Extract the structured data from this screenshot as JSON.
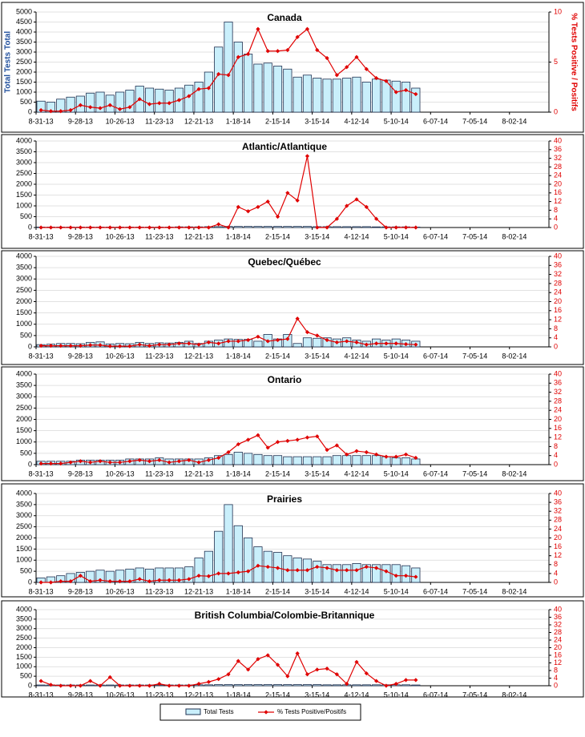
{
  "chart_data": [
    {
      "type": "bar_line",
      "title": "Canada",
      "y_label": "Total Tests Total",
      "y2_label": "% Tests Positive / Positifs",
      "categories": [
        "8-31-13",
        null,
        null,
        null,
        "9-28-13",
        null,
        null,
        null,
        "10-26-13",
        null,
        null,
        null,
        "11-23-13",
        null,
        null,
        null,
        "12-21-13",
        null,
        null,
        null,
        "1-18-14",
        null,
        null,
        null,
        "2-15-14",
        null,
        null,
        null,
        "3-15-14",
        null,
        null,
        null,
        "4-12-14",
        null,
        null,
        null,
        "5-10-14",
        null,
        null,
        null,
        "6-07-14",
        null,
        null,
        null,
        "7-05-14",
        null,
        null,
        null,
        "8-02-14",
        null,
        null,
        null
      ],
      "series": [
        {
          "name": "Total Tests",
          "color": "#c9effb",
          "values": [
            550,
            500,
            650,
            750,
            800,
            950,
            1000,
            850,
            1000,
            1100,
            1300,
            1200,
            1150,
            1100,
            1200,
            1350,
            1500,
            2000,
            3250,
            4500,
            3500,
            2900,
            2400,
            2450,
            2300,
            2150,
            1750,
            1850,
            1700,
            1650,
            1650,
            1700,
            1750,
            1500,
            1650,
            1600,
            1550,
            1500,
            1200,
            null,
            null,
            null,
            null,
            null,
            null,
            null,
            null,
            null,
            null,
            null,
            null,
            null
          ]
        },
        {
          "name": "% Tests Positive/Positifs",
          "color": "#e00000",
          "axis": "y2",
          "values": [
            0.2,
            0.1,
            0.1,
            0.2,
            0.7,
            0.5,
            0.4,
            0.7,
            0.3,
            0.5,
            1.3,
            0.8,
            0.9,
            0.9,
            1.2,
            1.6,
            2.3,
            2.4,
            3.8,
            3.7,
            5.5,
            5.8,
            8.3,
            6.1,
            6.1,
            6.2,
            7.5,
            8.3,
            6.2,
            5.4,
            3.7,
            4.5,
            5.5,
            4.3,
            3.4,
            3.1,
            2.0,
            2.2,
            1.8,
            null,
            null,
            null,
            null,
            null,
            null,
            null,
            null,
            null,
            null,
            null,
            null,
            null
          ]
        }
      ],
      "ylim": [
        0,
        5000
      ],
      "yticks": [
        0,
        500,
        1000,
        1500,
        2000,
        2500,
        3000,
        3500,
        4000,
        4500,
        5000
      ],
      "y2lim": [
        0,
        10
      ],
      "y2ticks": [
        0,
        5,
        10
      ],
      "grid": true
    },
    {
      "type": "bar_line",
      "title": "Atlantic/Atlantique",
      "categories": [
        "8-31-13",
        null,
        null,
        null,
        "9-28-13",
        null,
        null,
        null,
        "10-26-13",
        null,
        null,
        null,
        "11-23-13",
        null,
        null,
        null,
        "12-21-13",
        null,
        null,
        null,
        "1-18-14",
        null,
        null,
        null,
        "2-15-14",
        null,
        null,
        null,
        "3-15-14",
        null,
        null,
        null,
        "4-12-14",
        null,
        null,
        null,
        "5-10-14",
        null,
        null,
        null,
        "6-07-14",
        null,
        null,
        null,
        "7-05-14",
        null,
        null,
        null,
        "8-02-14",
        null,
        null,
        null
      ],
      "series": [
        {
          "color": "#c9effb",
          "values": [
            20,
            20,
            20,
            20,
            20,
            20,
            20,
            20,
            20,
            20,
            20,
            20,
            20,
            20,
            30,
            30,
            30,
            40,
            40,
            50,
            50,
            50,
            50,
            50,
            50,
            50,
            50,
            50,
            40,
            40,
            40,
            40,
            40,
            40,
            30,
            30,
            30,
            30,
            20,
            null,
            null,
            null,
            null,
            null,
            null,
            null,
            null,
            null,
            null,
            null,
            null,
            null
          ]
        },
        {
          "color": "#e00000",
          "axis": "y2",
          "values": [
            0,
            0,
            0,
            0,
            0,
            0,
            0,
            0,
            0,
            0,
            0,
            0,
            0,
            0,
            0,
            0,
            0,
            0,
            1.5,
            0,
            9.5,
            7.5,
            9.5,
            12,
            5,
            16,
            12.5,
            33,
            0,
            0,
            4,
            10,
            13,
            9.5,
            4,
            0,
            0,
            0,
            0,
            null,
            null,
            null,
            null,
            null,
            null,
            null,
            null,
            null,
            null,
            null,
            null,
            null
          ]
        }
      ],
      "ylim": [
        0,
        4000
      ],
      "yticks": [
        0,
        500,
        1000,
        1500,
        2000,
        2500,
        3000,
        3500,
        4000
      ],
      "y2lim": [
        0,
        40
      ],
      "y2ticks": [
        0,
        4,
        8,
        12,
        16,
        20,
        24,
        28,
        32,
        36,
        40
      ],
      "grid": true
    },
    {
      "type": "bar_line",
      "title": "Quebec/Québec",
      "categories": [
        "8-31-13",
        null,
        null,
        null,
        "9-28-13",
        null,
        null,
        null,
        "10-26-13",
        null,
        null,
        null,
        "11-23-13",
        null,
        null,
        null,
        "12-21-13",
        null,
        null,
        null,
        "1-18-14",
        null,
        null,
        null,
        "2-15-14",
        null,
        null,
        null,
        "3-15-14",
        null,
        null,
        null,
        "4-12-14",
        null,
        null,
        null,
        "5-10-14",
        null,
        null,
        null,
        "6-07-14",
        null,
        null,
        null,
        "7-05-14",
        null,
        null,
        null,
        "8-02-14",
        null,
        null,
        null
      ],
      "series": [
        {
          "color": "#c9effb",
          "values": [
            100,
            120,
            150,
            150,
            140,
            200,
            220,
            130,
            150,
            140,
            200,
            150,
            180,
            170,
            200,
            250,
            150,
            250,
            300,
            350,
            330,
            330,
            250,
            550,
            350,
            550,
            150,
            400,
            380,
            400,
            350,
            400,
            300,
            250,
            350,
            300,
            350,
            300,
            250,
            null,
            null,
            null,
            null,
            null,
            null,
            null,
            null,
            null,
            null,
            null,
            null,
            null
          ]
        },
        {
          "color": "#e00000",
          "axis": "y2",
          "values": [
            0.5,
            0.5,
            0.5,
            0.5,
            0.5,
            0.8,
            0.8,
            0.3,
            0.3,
            0.3,
            1.0,
            0.5,
            1.0,
            1.0,
            1.5,
            1.5,
            1.0,
            2.0,
            1.5,
            2.5,
            2.5,
            3.0,
            4.5,
            2.5,
            3.0,
            3.5,
            12.5,
            6.5,
            5.0,
            3.0,
            2.0,
            2.5,
            2.0,
            1.0,
            1.5,
            1.5,
            1.5,
            1.2,
            1.0,
            null,
            null,
            null,
            null,
            null,
            null,
            null,
            null,
            null,
            null,
            null,
            null,
            null
          ]
        }
      ],
      "ylim": [
        0,
        4000
      ],
      "yticks": [
        0,
        500,
        1000,
        1500,
        2000,
        2500,
        3000,
        3500,
        4000
      ],
      "y2lim": [
        0,
        40
      ],
      "y2ticks": [
        0,
        4,
        8,
        12,
        16,
        20,
        24,
        28,
        32,
        36,
        40
      ],
      "grid": true
    },
    {
      "type": "bar_line",
      "title": "Ontario",
      "categories": [
        "8-31-13",
        null,
        null,
        null,
        "9-28-13",
        null,
        null,
        null,
        "10-26-13",
        null,
        null,
        null,
        "11-23-13",
        null,
        null,
        null,
        "12-21-13",
        null,
        null,
        null,
        "1-18-14",
        null,
        null,
        null,
        "2-15-14",
        null,
        null,
        null,
        "3-15-14",
        null,
        null,
        null,
        "4-12-14",
        null,
        null,
        null,
        "5-10-14",
        null,
        null,
        null,
        "6-07-14",
        null,
        null,
        null,
        "7-05-14",
        null,
        null,
        null,
        "8-02-14",
        null,
        null,
        null
      ],
      "series": [
        {
          "color": "#c9effb",
          "values": [
            150,
            150,
            150,
            150,
            200,
            200,
            200,
            200,
            200,
            250,
            250,
            250,
            300,
            250,
            250,
            250,
            250,
            300,
            400,
            450,
            550,
            500,
            450,
            400,
            400,
            350,
            350,
            350,
            350,
            350,
            400,
            400,
            400,
            400,
            400,
            350,
            300,
            300,
            250,
            null,
            null,
            null,
            null,
            null,
            null,
            null,
            null,
            null,
            null,
            null,
            null,
            null
          ]
        },
        {
          "color": "#e00000",
          "axis": "y2",
          "values": [
            0.5,
            0.5,
            0.5,
            1.0,
            1.5,
            1.0,
            1.5,
            1.0,
            1.0,
            1.5,
            2.0,
            1.5,
            2.0,
            1.0,
            1.5,
            2.0,
            1.0,
            2.0,
            3.0,
            5.5,
            9,
            11,
            13,
            7.5,
            10,
            10.5,
            11,
            12,
            12.5,
            6.5,
            8.5,
            4.5,
            6,
            5.5,
            4.5,
            3.5,
            3.5,
            4.5,
            3.0,
            null,
            null,
            null,
            null,
            null,
            null,
            null,
            null,
            null,
            null,
            null,
            null,
            null
          ]
        }
      ],
      "ylim": [
        0,
        4000
      ],
      "yticks": [
        0,
        500,
        1000,
        1500,
        2000,
        2500,
        3000,
        3500,
        4000
      ],
      "y2lim": [
        0,
        40
      ],
      "y2ticks": [
        0,
        4,
        8,
        12,
        16,
        20,
        24,
        28,
        32,
        36,
        40
      ],
      "grid": true
    },
    {
      "type": "bar_line",
      "title": "Prairies",
      "categories": [
        "8-31-13",
        null,
        null,
        null,
        "9-28-13",
        null,
        null,
        null,
        "10-26-13",
        null,
        null,
        null,
        "11-23-13",
        null,
        null,
        null,
        "12-21-13",
        null,
        null,
        null,
        "1-18-14",
        null,
        null,
        null,
        "2-15-14",
        null,
        null,
        null,
        "3-15-14",
        null,
        null,
        null,
        "4-12-14",
        null,
        null,
        null,
        "5-10-14",
        null,
        null,
        null,
        "6-07-14",
        null,
        null,
        null,
        "7-05-14",
        null,
        null,
        null,
        "8-02-14",
        null,
        null,
        null
      ],
      "series": [
        {
          "color": "#c9effb",
          "values": [
            200,
            250,
            300,
            400,
            450,
            500,
            550,
            500,
            550,
            600,
            650,
            600,
            650,
            650,
            650,
            700,
            1100,
            1400,
            2300,
            3500,
            2550,
            2000,
            1600,
            1400,
            1350,
            1200,
            1100,
            1050,
            950,
            800,
            800,
            800,
            850,
            800,
            800,
            800,
            800,
            750,
            650,
            null,
            null,
            null,
            null,
            null,
            null,
            null,
            null,
            null,
            null,
            null,
            null,
            null
          ]
        },
        {
          "color": "#e00000",
          "axis": "y2",
          "values": [
            0,
            0,
            0.5,
            0.5,
            3.0,
            0.5,
            1.0,
            0.5,
            0.5,
            0.5,
            1.5,
            0.5,
            1.0,
            1.0,
            1.0,
            1.5,
            3.0,
            2.8,
            4,
            4,
            4.5,
            5,
            7.5,
            7,
            6.5,
            5.5,
            5.5,
            5.5,
            7,
            6.5,
            5.5,
            5.5,
            5.5,
            7,
            6.5,
            5,
            3,
            3,
            2.5,
            null,
            null,
            null,
            null,
            null,
            null,
            null,
            null,
            null,
            null,
            null,
            null,
            null
          ]
        }
      ],
      "ylim": [
        0,
        4000
      ],
      "yticks": [
        0,
        500,
        1000,
        1500,
        2000,
        2500,
        3000,
        3500,
        4000
      ],
      "y2lim": [
        0,
        40
      ],
      "y2ticks": [
        0,
        4,
        8,
        12,
        16,
        20,
        24,
        28,
        32,
        36,
        40
      ],
      "grid": true
    },
    {
      "type": "bar_line",
      "title": "British Columbia/Colombie-Britannique",
      "categories": [
        "8-31-13",
        null,
        null,
        null,
        "9-28-13",
        null,
        null,
        null,
        "10-26-13",
        null,
        null,
        null,
        "11-23-13",
        null,
        null,
        null,
        "12-21-13",
        null,
        null,
        null,
        "1-18-14",
        null,
        null,
        null,
        "2-15-14",
        null,
        null,
        null,
        "3-15-14",
        null,
        null,
        null,
        "4-12-14",
        null,
        null,
        null,
        "5-10-14",
        null,
        null,
        null,
        "6-07-14",
        null,
        null,
        null,
        "7-05-14",
        null,
        null,
        null,
        "8-02-14",
        null,
        null,
        null
      ],
      "series": [
        {
          "color": "#c9effb",
          "values": [
            40,
            40,
            40,
            40,
            40,
            40,
            40,
            40,
            40,
            40,
            40,
            40,
            40,
            40,
            40,
            40,
            50,
            50,
            60,
            60,
            60,
            60,
            60,
            60,
            60,
            60,
            60,
            60,
            60,
            50,
            50,
            50,
            50,
            50,
            50,
            50,
            50,
            50,
            40,
            null,
            null,
            null,
            null,
            null,
            null,
            null,
            null,
            null,
            null,
            null,
            null,
            null
          ]
        },
        {
          "color": "#e00000",
          "axis": "y2",
          "values": [
            2.5,
            0.5,
            0,
            0,
            0,
            2.5,
            0,
            4.5,
            0,
            0,
            0,
            0,
            1.0,
            0,
            0,
            0,
            1.0,
            2.0,
            3.5,
            6,
            13,
            8.5,
            14,
            16,
            11,
            5,
            17,
            6,
            8.5,
            9,
            6,
            1,
            12.5,
            6.5,
            2.5,
            0,
            1,
            3,
            3,
            null,
            null,
            null,
            null,
            null,
            null,
            null,
            null,
            null,
            null,
            null,
            null,
            null
          ]
        }
      ],
      "ylim": [
        0,
        4000
      ],
      "yticks": [
        0,
        500,
        1000,
        1500,
        2000,
        2500,
        3000,
        3500,
        4000
      ],
      "y2lim": [
        0,
        40
      ],
      "y2ticks": [
        0,
        4,
        8,
        12,
        16,
        20,
        24,
        28,
        32,
        36,
        40
      ],
      "grid": true
    }
  ]
}
